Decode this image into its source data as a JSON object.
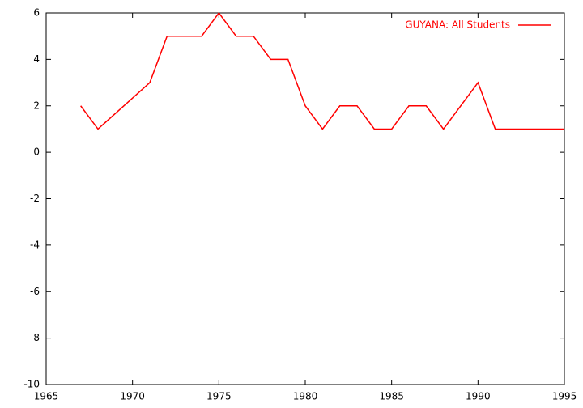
{
  "chart_data": {
    "type": "line",
    "x": [
      1967,
      1968,
      1971,
      1972,
      1973,
      1974,
      1975,
      1976,
      1977,
      1978,
      1979,
      1980,
      1981,
      1982,
      1983,
      1984,
      1985,
      1986,
      1987,
      1988,
      1990,
      1991,
      1992,
      1993,
      1994,
      1995
    ],
    "series": [
      {
        "name": "GUYANA: All Students",
        "color": "#ff0000",
        "values": [
          2,
          1,
          3,
          5,
          5,
          5,
          6,
          5,
          5,
          4,
          4,
          2,
          1,
          2,
          2,
          1,
          1,
          2,
          2,
          1,
          3,
          1,
          1,
          1,
          1,
          1
        ]
      }
    ],
    "xlim": [
      1965,
      1995
    ],
    "xticks": [
      1965,
      1970,
      1975,
      1980,
      1985,
      1990,
      1995
    ],
    "ylim": [
      -10,
      6
    ],
    "yticks": [
      -10,
      -8,
      -6,
      -4,
      -2,
      0,
      2,
      4,
      6
    ],
    "legend": "top-right"
  }
}
